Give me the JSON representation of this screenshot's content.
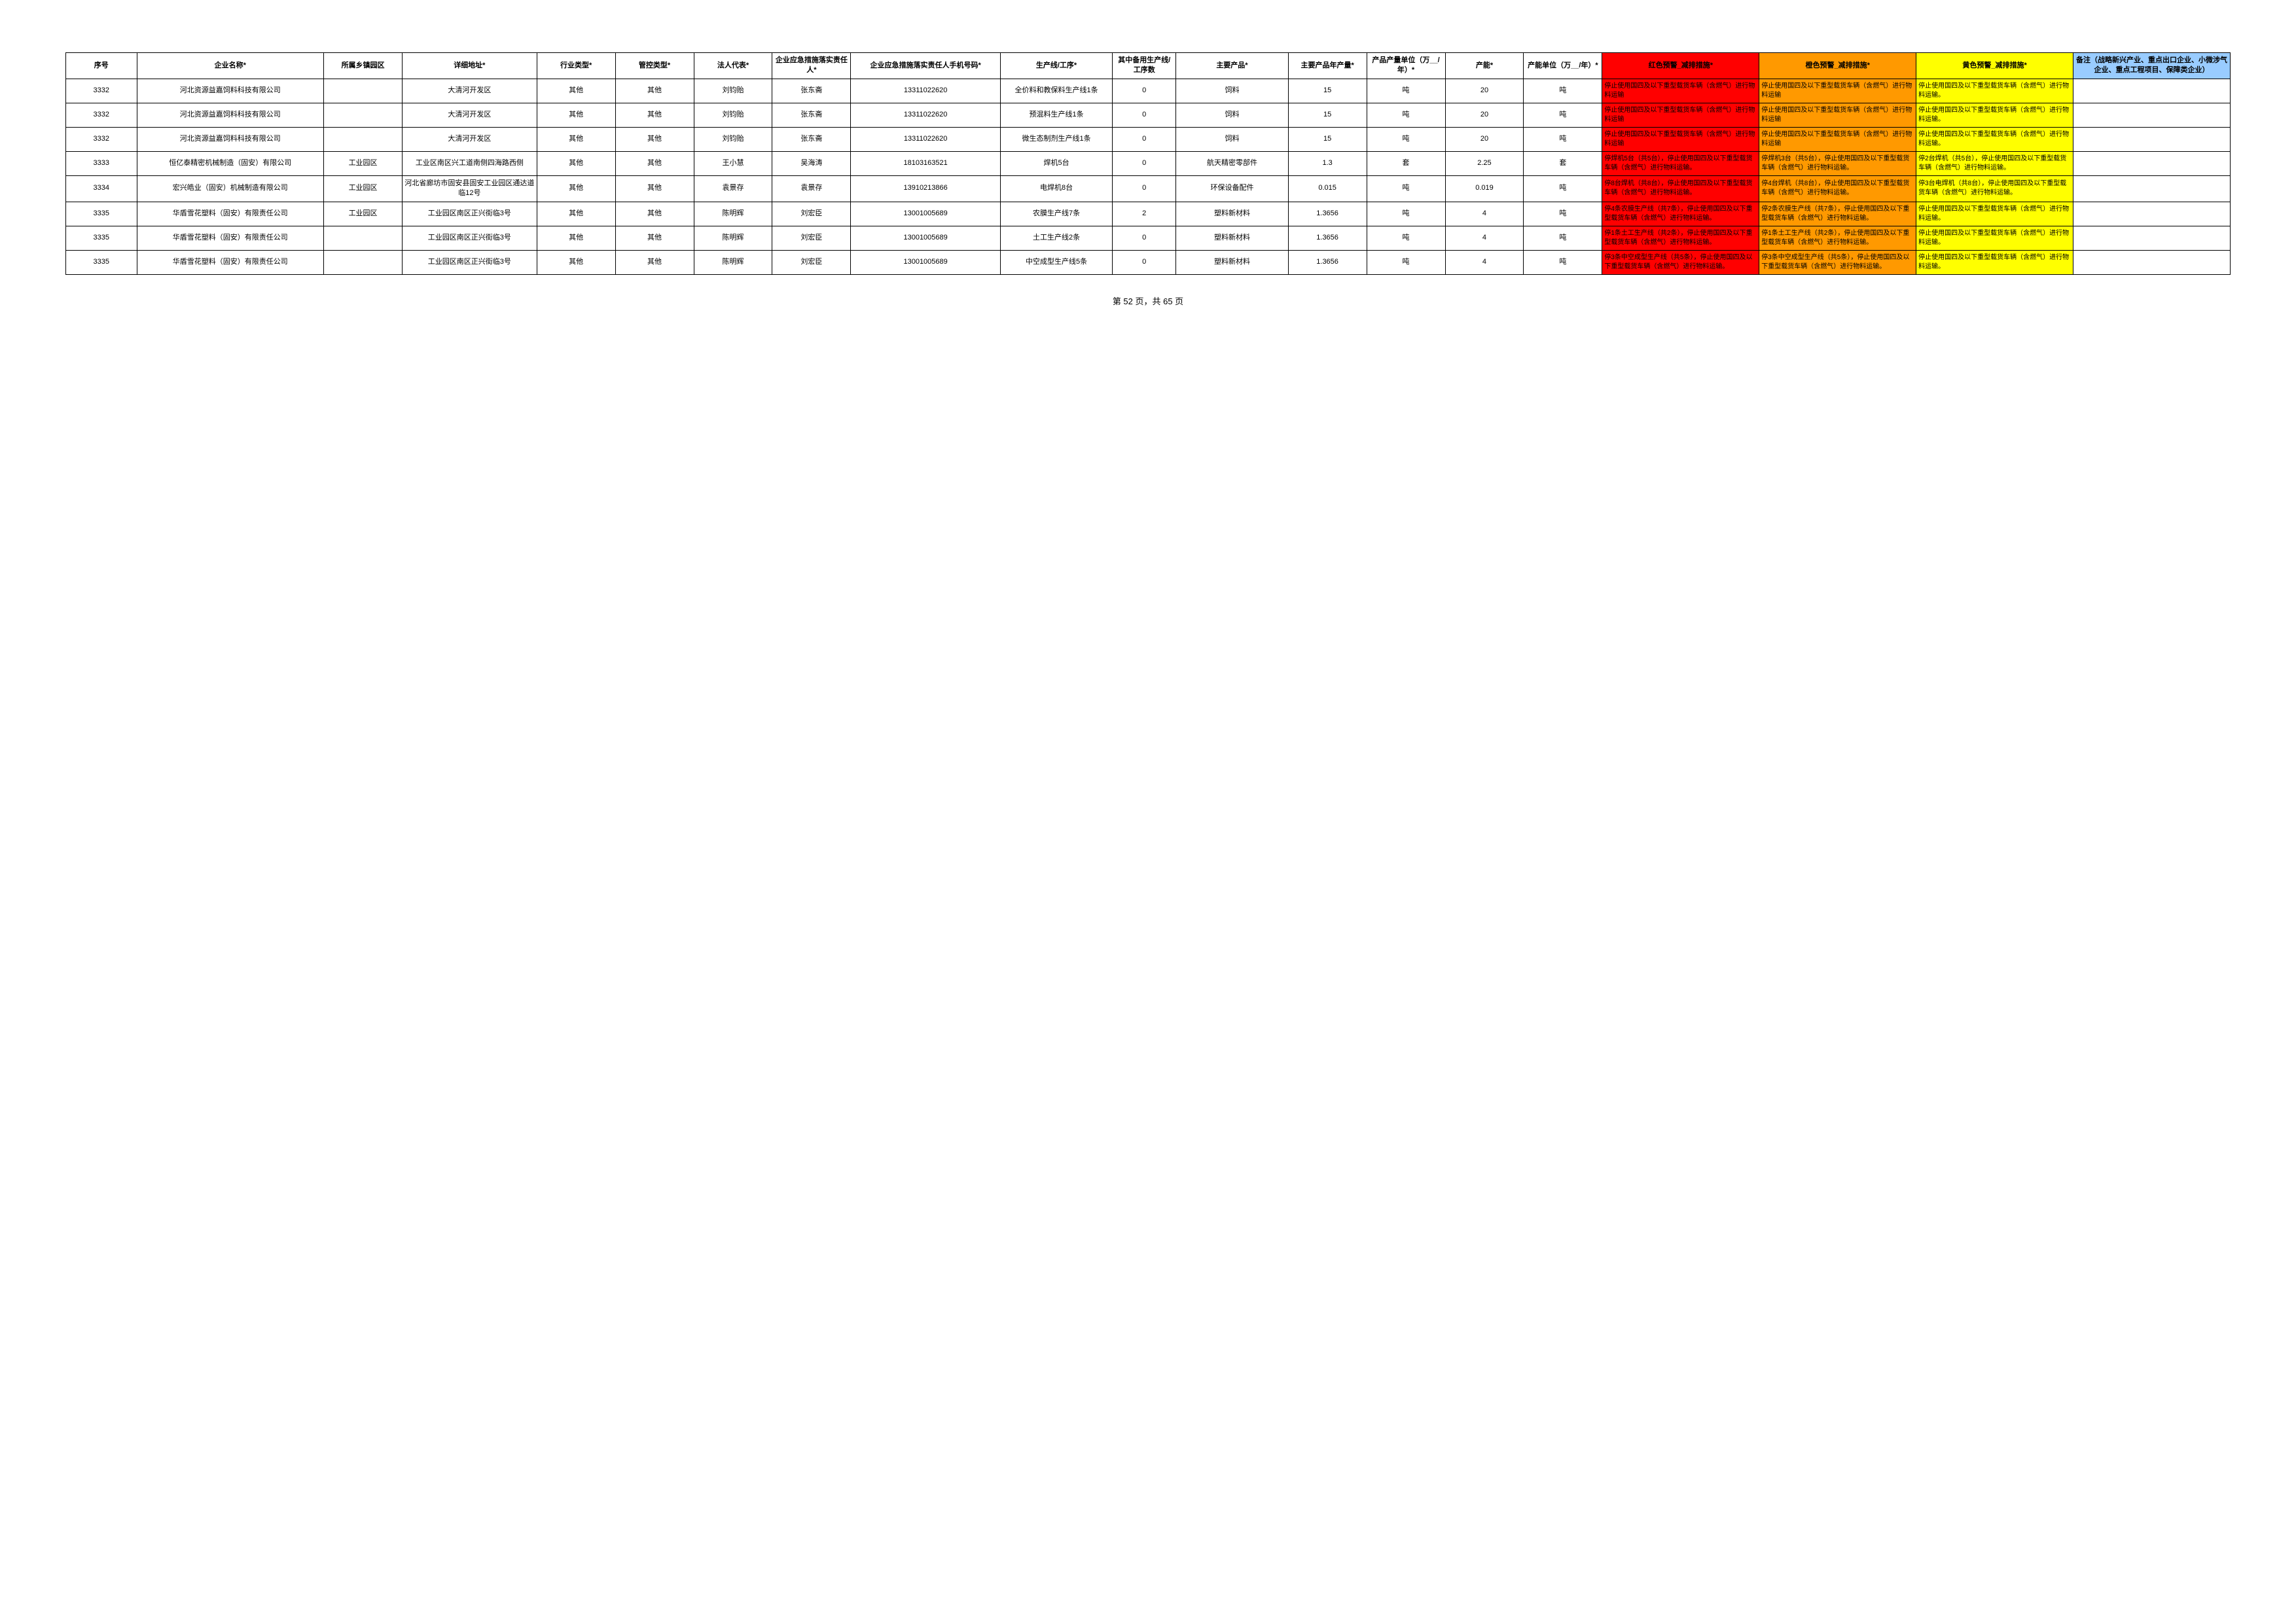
{
  "columns": [
    "序号",
    "企业名称*",
    "所属乡镇园区",
    "详细地址*",
    "行业类型*",
    "管控类型*",
    "法人代表*",
    "企业应急措施落实责任人*",
    "企业应急措施落实责任人手机号码*",
    "生产线/工序*",
    "其中备用生产线/工序数",
    "主要产品*",
    "主要产品年产量*",
    "产品产量单位（万__/年）*",
    "产能*",
    "产能单位（万__/年）*",
    "红色预警_减排措施*",
    "橙色预警_减排措施*",
    "黄色预警_减排措施*",
    "备注（战略新兴产业、重点出口企业、小微涉气企业、重点工程项目、保障类企业）"
  ],
  "rows": [
    {
      "seq": "3332",
      "name": "河北资源益嘉饲料科技有限公司",
      "town": "",
      "addr": "大清河开发区",
      "ind": "其他",
      "ctrl": "其他",
      "legal": "刘钧贻",
      "resp": "张东斋",
      "phone": "13311022620",
      "line": "全价料和教保料生产线1条",
      "backup": "0",
      "prod": "饲料",
      "cap": "15",
      "unit1": "吨",
      "capacity": "20",
      "unit2": "吨",
      "red": "停止使用国四及以下重型载货车辆（含燃气）进行物料运输",
      "orange": "停止使用国四及以下重型载货车辆（含燃气）进行物料运输",
      "yellow": "停止使用国四及以下重型载货车辆（含燃气）进行物料运输。",
      "note": ""
    },
    {
      "seq": "3332",
      "name": "河北资源益嘉饲料科技有限公司",
      "town": "",
      "addr": "大清河开发区",
      "ind": "其他",
      "ctrl": "其他",
      "legal": "刘钧贻",
      "resp": "张东斋",
      "phone": "13311022620",
      "line": "预混料生产线1条",
      "backup": "0",
      "prod": "饲料",
      "cap": "15",
      "unit1": "吨",
      "capacity": "20",
      "unit2": "吨",
      "red": "停止使用国四及以下重型载货车辆（含燃气）进行物料运输",
      "orange": "停止使用国四及以下重型载货车辆（含燃气）进行物料运输",
      "yellow": "停止使用国四及以下重型载货车辆（含燃气）进行物料运输。",
      "note": ""
    },
    {
      "seq": "3332",
      "name": "河北资源益嘉饲料科技有限公司",
      "town": "",
      "addr": "大清河开发区",
      "ind": "其他",
      "ctrl": "其他",
      "legal": "刘钧贻",
      "resp": "张东斋",
      "phone": "13311022620",
      "line": "微生态制剂生产线1条",
      "backup": "0",
      "prod": "饲料",
      "cap": "15",
      "unit1": "吨",
      "capacity": "20",
      "unit2": "吨",
      "red": "停止使用国四及以下重型载货车辆（含燃气）进行物料运输",
      "orange": "停止使用国四及以下重型载货车辆（含燃气）进行物料运输",
      "yellow": "停止使用国四及以下重型载货车辆（含燃气）进行物料运输。",
      "note": ""
    },
    {
      "seq": "3333",
      "name": "恒亿泰精密机械制造（固安）有限公司",
      "town": "工业园区",
      "addr": "工业区南区兴工道南侧四海路西侧",
      "ind": "其他",
      "ctrl": "其他",
      "legal": "王小慧",
      "resp": "吴海涛",
      "phone": "18103163521",
      "line": "焊机5台",
      "backup": "0",
      "prod": "航天精密零部件",
      "cap": "1.3",
      "unit1": "套",
      "capacity": "2.25",
      "unit2": "套",
      "red": "停焊机5台（共5台），停止使用国四及以下重型载货车辆（含燃气）进行物料运输。",
      "orange": "停焊机3台（共5台），停止使用国四及以下重型载货车辆（含燃气）进行物料运输。",
      "yellow": "停2台焊机（共5台），停止使用国四及以下重型载货车辆（含燃气）进行物料运输。",
      "note": ""
    },
    {
      "seq": "3334",
      "name": "宏兴皓业（固安）机械制造有限公司",
      "town": "工业园区",
      "addr": "河北省廊坊市固安县固安工业园区通达道临12号",
      "ind": "其他",
      "ctrl": "其他",
      "legal": "袁景存",
      "resp": "袁景存",
      "phone": "13910213866",
      "line": "电焊机8台",
      "backup": "0",
      "prod": "环保设备配件",
      "cap": "0.015",
      "unit1": "吨",
      "capacity": "0.019",
      "unit2": "吨",
      "red": "停8台焊机（共8台），停止使用国四及以下重型载货车辆（含燃气）进行物料运输。",
      "orange": "停4台焊机（共8台），停止使用国四及以下重型载货车辆（含燃气）进行物料运输。",
      "yellow": "停3台电焊机（共8台），停止使用国四及以下重型载货车辆（含燃气）进行物料运输。",
      "note": ""
    },
    {
      "seq": "3335",
      "name": "华盾雪花塑料（固安）有限责任公司",
      "town": "工业园区",
      "addr": "工业园区南区正兴街临3号",
      "ind": "其他",
      "ctrl": "其他",
      "legal": "陈明辉",
      "resp": "刘宏臣",
      "phone": "13001005689",
      "line": "农膜生产线7条",
      "backup": "2",
      "prod": "塑料新材料",
      "cap": "1.3656",
      "unit1": "吨",
      "capacity": "4",
      "unit2": "吨",
      "red": "停4条农膜生产线（共7条），停止使用国四及以下重型载货车辆（含燃气）进行物料运输。",
      "orange": "停2条农膜生产线（共7条），停止使用国四及以下重型载货车辆（含燃气）进行物料运输。",
      "yellow": "停止使用国四及以下重型载货车辆（含燃气）进行物料运输。",
      "note": ""
    },
    {
      "seq": "3335",
      "name": "华盾雪花塑料（固安）有限责任公司",
      "town": "",
      "addr": "工业园区南区正兴街临3号",
      "ind": "其他",
      "ctrl": "其他",
      "legal": "陈明辉",
      "resp": "刘宏臣",
      "phone": "13001005689",
      "line": "土工生产线2条",
      "backup": "0",
      "prod": "塑料新材料",
      "cap": "1.3656",
      "unit1": "吨",
      "capacity": "4",
      "unit2": "吨",
      "red": "停1条土工生产线（共2条），停止使用国四及以下重型载货车辆（含燃气）进行物料运输。",
      "orange": "停1条土工生产线（共2条），停止使用国四及以下重型载货车辆（含燃气）进行物料运输。",
      "yellow": "停止使用国四及以下重型载货车辆（含燃气）进行物料运输。",
      "note": ""
    },
    {
      "seq": "3335",
      "name": "华盾雪花塑料（固安）有限责任公司",
      "town": "",
      "addr": "工业园区南区正兴街临3号",
      "ind": "其他",
      "ctrl": "其他",
      "legal": "陈明辉",
      "resp": "刘宏臣",
      "phone": "13001005689",
      "line": "中空成型生产线5条",
      "backup": "0",
      "prod": "塑料新材料",
      "cap": "1.3656",
      "unit1": "吨",
      "capacity": "4",
      "unit2": "吨",
      "red": "停3条中空成型生产线（共5条），停止使用国四及以下重型载货车辆（含燃气）进行物料运输。",
      "orange": "停3条中空成型生产线（共5条），停止使用国四及以下重型载货车辆（含燃气）进行物料运输。",
      "yellow": "停止使用国四及以下重型载货车辆（含燃气）进行物料运输。",
      "note": ""
    }
  ],
  "pager": "第 52 页，共 65 页"
}
